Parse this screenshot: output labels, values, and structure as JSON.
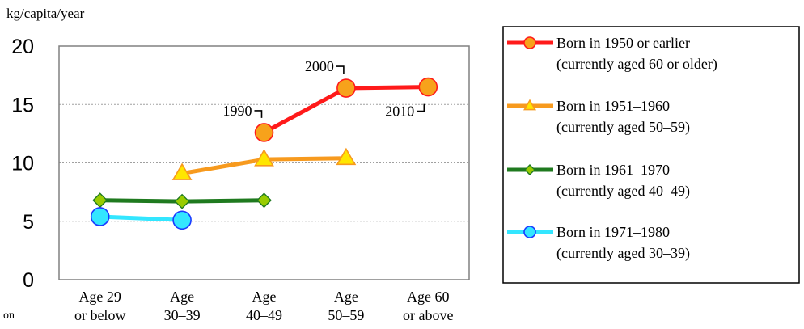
{
  "chart_data": {
    "type": "line",
    "ylabel": "kg/capita/year",
    "ylim": [
      0,
      20
    ],
    "yticks": [
      0,
      5,
      10,
      15,
      20
    ],
    "grid": true,
    "legend_position": "right",
    "categories": [
      [
        "Age 29",
        "or below"
      ],
      [
        "Age",
        "30–39"
      ],
      [
        "Age",
        "40–49"
      ],
      [
        "Age",
        "50–59"
      ],
      [
        "Age 60",
        "or above"
      ]
    ],
    "series": [
      {
        "name": [
          "Born in 1950 or earlier",
          "(currently aged 60 or older)"
        ],
        "color": "#ff1a1a",
        "marker": "circle",
        "marker_fill": "#f7a21b",
        "marker_stroke": "#ff1a1a",
        "values": [
          null,
          null,
          12.6,
          16.4,
          16.5
        ]
      },
      {
        "name": [
          "Born in 1951–1960",
          "(currently aged 50–59)"
        ],
        "color": "#f79a1e",
        "marker": "triangle",
        "marker_fill": "#ffe600",
        "marker_stroke": "#f79a1e",
        "values": [
          null,
          9.1,
          10.3,
          10.4,
          null
        ]
      },
      {
        "name": [
          "Born in 1961–1970",
          "(currently aged 40–49)"
        ],
        "color": "#1f7a1f",
        "marker": "diamond",
        "marker_fill": "#99cc00",
        "marker_stroke": "#1f7a1f",
        "values": [
          6.8,
          6.7,
          6.8,
          null,
          null
        ]
      },
      {
        "name": [
          "Born in 1971–1980",
          "(currently aged 30–39)"
        ],
        "color": "#33e6ff",
        "marker": "circle",
        "marker_fill": "#33e6ff",
        "marker_stroke": "#1a3aff",
        "values": [
          5.4,
          5.1,
          null,
          null,
          null
        ]
      }
    ],
    "annotations": [
      {
        "text": "1990",
        "series": 0,
        "point": 2,
        "bracket": "top-right"
      },
      {
        "text": "2000",
        "series": 0,
        "point": 3,
        "bracket": "top-right"
      },
      {
        "text": "2010",
        "series": 0,
        "point": 4,
        "bracket": "bottom-left"
      }
    ],
    "corner_text": "on"
  }
}
